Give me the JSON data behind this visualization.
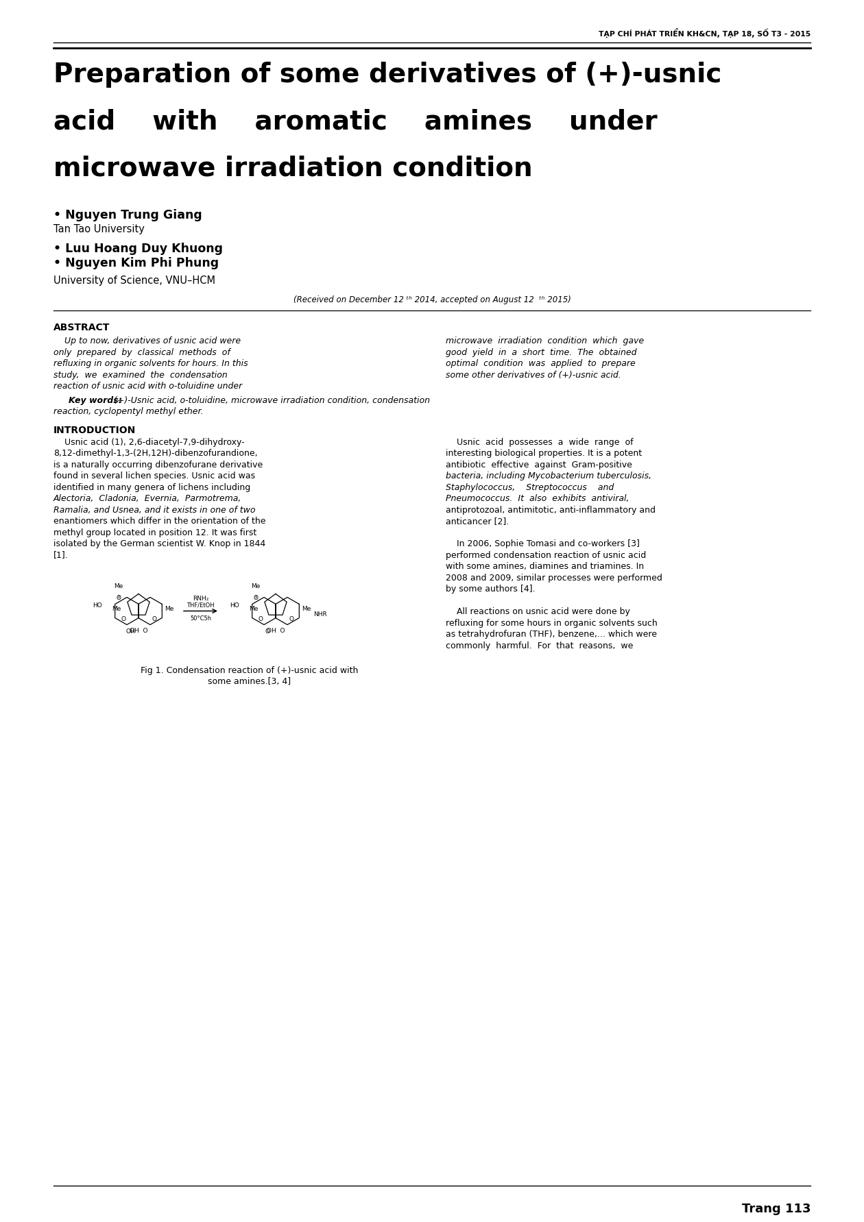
{
  "bg_color": "#ffffff",
  "header_text": "TẠP CHÍ PHÁT TRIỂN KH&CN, TẠP 18, SỐ T3 - 2015",
  "title_line1": "Preparation of some derivatives of (+)-usnic",
  "title_line2": "acid    with    aromatic    amines    under",
  "title_line3": "microwave irradiation condition",
  "author1_bullet": "• Nguyen Trung Giang",
  "author1_affil": "Tan Tao University",
  "author2_bullet": "• Luu Hoang Duy Khuong",
  "author3_bullet": "• Nguyen Kim Phi Phung",
  "affil2": "University of Science, VNU–HCM",
  "received": "(Received on December 12 ᵗʰ 2014, accepted on August 12  ᵗʰ 2015)",
  "abstract_title": "ABSTRACT",
  "abstract_col1_lines": [
    "    Up to now, derivatives of usnic acid were",
    "only  prepared  by  classical  methods  of",
    "refluxing in organic solvents for hours. In this",
    "study,  we  examined  the  condensation",
    "reaction of usnic acid with o-toluidine under"
  ],
  "abstract_col2_lines": [
    "microwave  irradiation  condition  which  gave",
    "good  yield  in  a  short  time.  The  obtained",
    "optimal  condition  was  applied  to  prepare",
    "some other derivatives of (+)-usnic acid."
  ],
  "kw_bold": "Key words:",
  "kw_rest1": " (+)-Usnic acid, o-toluidine, microwave irradiation condition, condensation",
  "kw_line2": "reaction, cyclopentyl methyl ether.",
  "intro_title": "INTRODUCTION",
  "intro_col1_lines": [
    "    Usnic acid (1), 2,6-diacetyl-7,9-dihydroxy-",
    "8,12-dimethyl-1,3-(2H,12H)-dibenzofurandione,",
    "is a naturally occurring dibenzofurane derivative",
    "found in several lichen species. Usnic acid was",
    "identified in many genera of lichens including",
    "Alectoria,  Cladonia,  Evernia,  Parmotrema,",
    "Ramalia, and Usnea, and it exists in one of two",
    "enantiomers which differ in the orientation of the",
    "methyl group located in position 12. It was first",
    "isolated by the German scientist W. Knop in 1844",
    "[1]."
  ],
  "intro_col1_italic_rows": [
    5,
    6
  ],
  "intro_col2_lines_p1": [
    "    Usnic  acid  possesses  a  wide  range  of",
    "interesting biological properties. It is a potent",
    "antibiotic  effective  against  Gram-positive",
    "bacteria, including Mycobacterium tuberculosis,",
    "Staphylococcus,    Streptococcus    and",
    "Pneumococcus.  It  also  exhibits  antiviral,",
    "antiprotozoal, antimitotic, anti-inflammatory and",
    "anticancer [2]."
  ],
  "intro_col2_italic_rows_p1": [
    3,
    4,
    5
  ],
  "intro_col2_lines_p2": [
    "    In 2006, Sophie Tomasi and co-workers [3]",
    "performed condensation reaction of usnic acid",
    "with some amines, diamines and triamines. In",
    "2008 and 2009, similar processes were performed",
    "by some authors [4]."
  ],
  "intro_col2_lines_p3": [
    "    All reactions on usnic acid were done by",
    "refluxing for some hours in organic solvents such",
    "as tetrahydrofuran (THF), benzene,... which were",
    "commonly  harmful.  For  that  reasons,  we"
  ],
  "fig1_cap_line1": "Fig 1. Condensation reaction of (+)-usnic acid with",
  "fig1_cap_line2": "some amines.[3, 4]",
  "page_number": "Trang 113",
  "arrow_label_top": "RNH₂",
  "arrow_label_mid": "THF/EtOH",
  "arrow_label_bot": "50°C5h"
}
